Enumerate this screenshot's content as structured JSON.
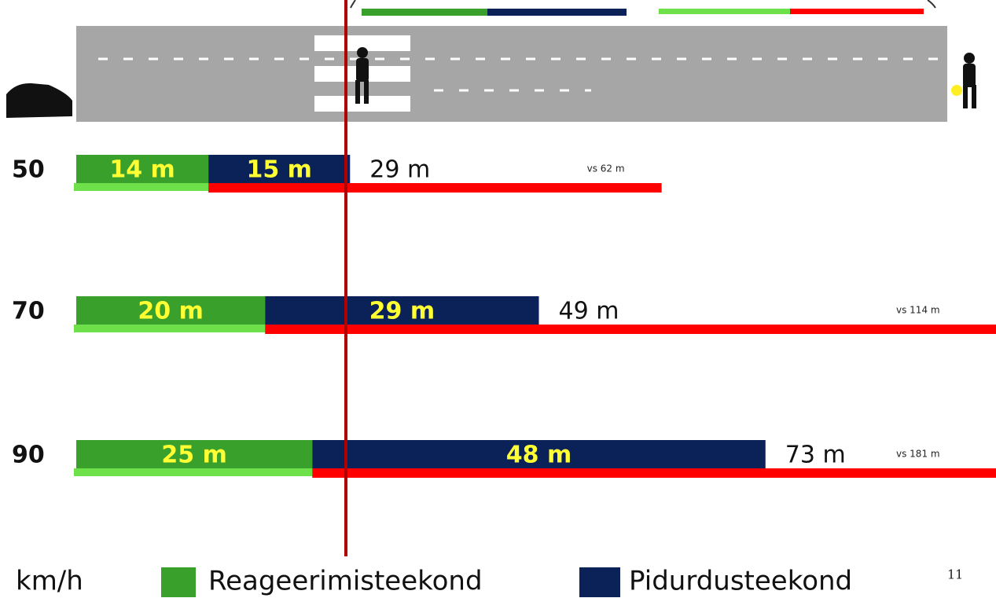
{
  "chart_data": {
    "type": "bar",
    "orientation": "horizontal",
    "stacked": true,
    "categories": [
      "50",
      "70",
      "90"
    ],
    "series": [
      {
        "name": "Reageerimisteekond",
        "color": "#3aa02c",
        "values": [
          14,
          20,
          25
        ],
        "value_labels": [
          "14 m",
          "20 m",
          "25 m"
        ]
      },
      {
        "name": "Pidurdusteekond",
        "color": "#0b2258",
        "values": [
          15,
          29,
          48
        ],
        "value_labels": [
          "15 m",
          "29 m",
          "48 m"
        ]
      }
    ],
    "totals": [
      29,
      49,
      73
    ],
    "total_labels": [
      "29 m",
      "49 m",
      "73 m"
    ],
    "comparison_values": [
      62,
      114,
      181
    ],
    "comparison_labels": [
      "vs 62 m",
      "vs 114 m",
      "vs 181 m"
    ],
    "comparison_colors": {
      "reaction": "#6ee04a",
      "braking": "#ff0000"
    },
    "axis_unit": "km/h",
    "xlim": [
      0,
      97
    ],
    "page_number": "11"
  }
}
